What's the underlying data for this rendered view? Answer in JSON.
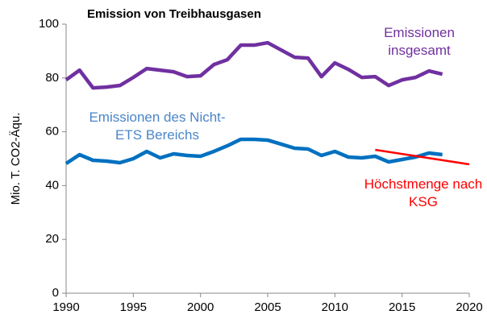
{
  "chart_data": {
    "type": "line",
    "title": "Emission von Treibhausgasen",
    "y_label": "Mio. T. CO2-Äqu.",
    "xlim": [
      1990,
      2020
    ],
    "xticks": [
      1990,
      1995,
      2000,
      2005,
      2010,
      2015,
      2020
    ],
    "ylim": [
      0,
      100
    ],
    "yticks": [
      0,
      20,
      40,
      60,
      80,
      100
    ],
    "grid": false,
    "series": [
      {
        "name": "Emissionen insgesamt",
        "color": "#7030a0",
        "label_color": "#7030a0",
        "x": [
          1990,
          1991,
          1992,
          1993,
          1994,
          1995,
          1996,
          1997,
          1998,
          1999,
          2000,
          2001,
          2002,
          2003,
          2004,
          2005,
          2006,
          2007,
          2008,
          2009,
          2010,
          2011,
          2012,
          2013,
          2014,
          2015,
          2016,
          2017,
          2018
        ],
        "values": [
          79.3,
          82.9,
          76.3,
          76.6,
          77.2,
          80.2,
          83.5,
          82.9,
          82.3,
          80.5,
          80.8,
          85.0,
          86.8,
          92.2,
          92.2,
          93.1,
          90.4,
          87.7,
          87.4,
          80.5,
          85.6,
          83.2,
          80.2,
          80.5,
          77.2,
          79.3,
          80.2,
          82.6,
          81.4
        ]
      },
      {
        "name": "Emissionen des Nicht-ETS Bereichs",
        "color": "#0070c0",
        "label_color": "#4a86c8",
        "x": [
          1990,
          1991,
          1992,
          1993,
          1994,
          1995,
          1996,
          1997,
          1998,
          1999,
          2000,
          2001,
          2002,
          2003,
          2004,
          2005,
          2006,
          2007,
          2008,
          2009,
          2010,
          2011,
          2012,
          2013,
          2014,
          2015,
          2016,
          2017,
          2018
        ],
        "values": [
          48.2,
          51.5,
          49.4,
          49.1,
          48.5,
          50.0,
          52.7,
          50.3,
          51.8,
          51.2,
          50.9,
          52.7,
          54.8,
          57.2,
          57.2,
          56.9,
          55.4,
          53.9,
          53.6,
          51.2,
          52.7,
          50.6,
          50.3,
          50.9,
          48.8,
          49.7,
          50.6,
          52.1,
          51.5
        ]
      },
      {
        "name": "Höchstmenge nach KSG",
        "color": "#ff0000",
        "label_color": "#ff0000",
        "x": [
          2013,
          2020
        ],
        "values": [
          53.3,
          47.9
        ]
      }
    ]
  }
}
